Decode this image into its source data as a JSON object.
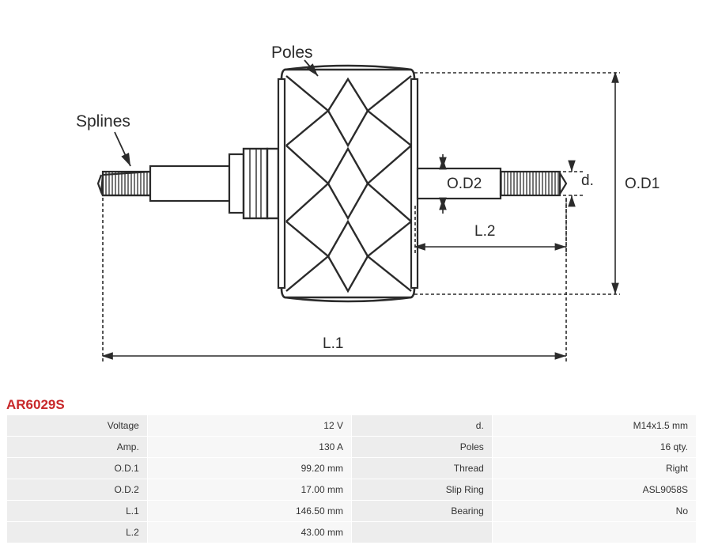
{
  "part_number": "AR6029S",
  "diagram": {
    "labels": {
      "poles": "Poles",
      "splines": "Splines",
      "od1": "O.D1",
      "od2": "O.D2",
      "d": "d.",
      "l1": "L.1",
      "l2": "L.2"
    },
    "colors": {
      "stroke": "#2b2b2b",
      "dash": "#2b2b2b",
      "background": "#ffffff"
    },
    "stroke_width": 2.2,
    "dash_pattern": "4 3"
  },
  "specs": {
    "rows_left": [
      {
        "label": "Voltage",
        "value": "12 V"
      },
      {
        "label": "Amp.",
        "value": "130 A"
      },
      {
        "label": "O.D.1",
        "value": "99.20 mm"
      },
      {
        "label": "O.D.2",
        "value": "17.00 mm"
      },
      {
        "label": "L.1",
        "value": "146.50 mm"
      },
      {
        "label": "L.2",
        "value": "43.00 mm"
      }
    ],
    "rows_right": [
      {
        "label": "d.",
        "value": "M14x1.5 mm"
      },
      {
        "label": "Poles",
        "value": "16 qty."
      },
      {
        "label": "Thread",
        "value": "Right"
      },
      {
        "label": "Slip Ring",
        "value": "ASL9058S"
      },
      {
        "label": "Bearing",
        "value": "No"
      },
      {
        "label": "",
        "value": ""
      }
    ]
  }
}
